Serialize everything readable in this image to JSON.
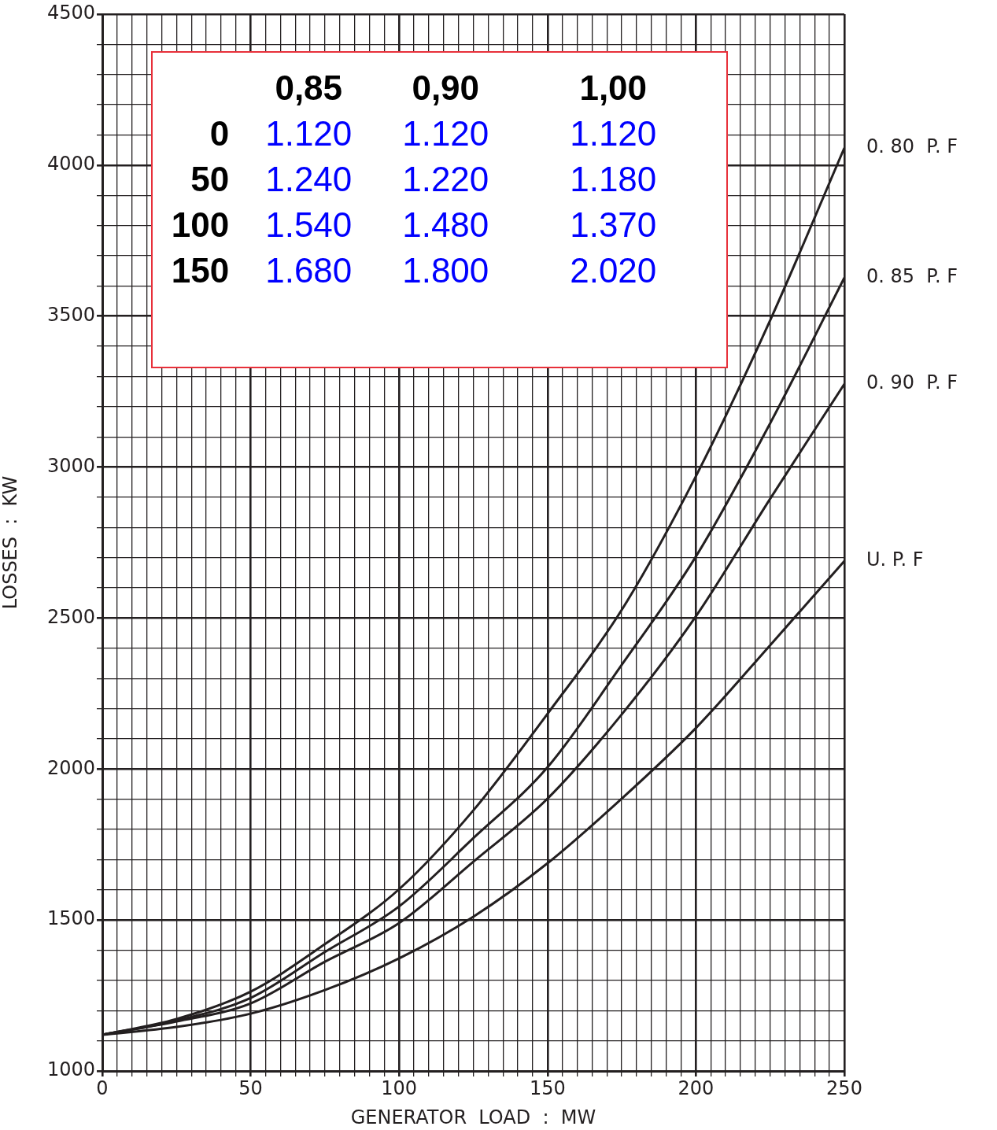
{
  "chart_data": {
    "type": "line",
    "xlabel": "GENERATOR  LOAD  :  MW",
    "ylabel": "LOSSES  :  KW",
    "x": [
      0,
      25,
      50,
      75,
      100,
      125,
      150,
      175,
      200,
      225,
      250
    ],
    "series": [
      {
        "name": "0. 80  P. F",
        "color": "#231f20",
        "values": [
          1120,
          1172,
          1263,
          1420,
          1602,
          1863,
          2183,
          2527,
          2970,
          3486,
          4057
        ]
      },
      {
        "name": "0. 85  P. F",
        "color": "#231f20",
        "values": [
          1120,
          1167,
          1242,
          1394,
          1545,
          1771,
          2006,
          2345,
          2704,
          3145,
          3627
        ]
      },
      {
        "name": "0. 90  P. F",
        "color": "#231f20",
        "values": [
          1120,
          1164,
          1224,
          1362,
          1490,
          1693,
          1902,
          2181,
          2506,
          2895,
          3275
        ]
      },
      {
        "name": "U. P. F",
        "color": "#231f20",
        "values": [
          1120,
          1146,
          1190,
          1268,
          1373,
          1511,
          1688,
          1902,
          2136,
          2410,
          2689
        ]
      }
    ],
    "xlim": [
      0,
      250
    ],
    "xticks": [
      0,
      {
        "value": 5,
        "label": null
      },
      {
        "value": 10,
        "label": null
      },
      {
        "value": 15,
        "label": null
      },
      {
        "value": 20,
        "label": null
      },
      {
        "value": 25,
        "label": null
      },
      {
        "value": 30,
        "label": null
      },
      {
        "value": 35,
        "label": null
      },
      {
        "value": 40,
        "label": null
      },
      {
        "value": 45,
        "label": null
      },
      50,
      {
        "value": 55,
        "label": null
      },
      {
        "value": 60,
        "label": null
      },
      {
        "value": 65,
        "label": null
      },
      {
        "value": 70,
        "label": null
      },
      {
        "value": 75,
        "label": null
      },
      {
        "value": 80,
        "label": null
      },
      {
        "value": 85,
        "label": null
      },
      {
        "value": 90,
        "label": null
      },
      {
        "value": 95,
        "label": null
      },
      100,
      {
        "value": 105,
        "label": null
      },
      {
        "value": 110,
        "label": null
      },
      {
        "value": 115,
        "label": null
      },
      {
        "value": 120,
        "label": null
      },
      {
        "value": 125,
        "label": null
      },
      {
        "value": 130,
        "label": null
      },
      {
        "value": 135,
        "label": null
      },
      {
        "value": 140,
        "label": null
      },
      {
        "value": 145,
        "label": null
      },
      150,
      {
        "value": 155,
        "label": null
      },
      {
        "value": 160,
        "label": null
      },
      {
        "value": 165,
        "label": null
      },
      {
        "value": 170,
        "label": null
      },
      {
        "value": 175,
        "label": null
      },
      {
        "value": 180,
        "label": null
      },
      {
        "value": 185,
        "label": null
      },
      {
        "value": 190,
        "label": null
      },
      {
        "value": 195,
        "label": null
      },
      200,
      {
        "value": 205,
        "label": null
      },
      {
        "value": 210,
        "label": null
      },
      {
        "value": 215,
        "label": null
      },
      {
        "value": 220,
        "label": null
      },
      {
        "value": 225,
        "label": null
      },
      {
        "value": 230,
        "label": null
      },
      {
        "value": 235,
        "label": null
      },
      {
        "value": 240,
        "label": null
      },
      {
        "value": 245,
        "label": null
      },
      250
    ],
    "ylim": [
      1000,
      4500
    ],
    "yticks": [
      1000,
      {
        "value": 1100,
        "label": null
      },
      {
        "value": 1200,
        "label": null
      },
      {
        "value": 1300,
        "label": null
      },
      {
        "value": 1400,
        "label": null
      },
      1500,
      {
        "value": 1600,
        "label": null
      },
      {
        "value": 1700,
        "label": null
      },
      {
        "value": 1800,
        "label": null
      },
      {
        "value": 1900,
        "label": null
      },
      2000,
      {
        "value": 2100,
        "label": null
      },
      {
        "value": 2200,
        "label": null
      },
      {
        "value": 2300,
        "label": null
      },
      {
        "value": 2400,
        "label": null
      },
      2500,
      {
        "value": 2600,
        "label": null
      },
      {
        "value": 2700,
        "label": null
      },
      {
        "value": 2800,
        "label": null
      },
      {
        "value": 2900,
        "label": null
      },
      3000,
      {
        "value": 3100,
        "label": null
      },
      {
        "value": 3200,
        "label": null
      },
      {
        "value": 3300,
        "label": null
      },
      {
        "value": 3400,
        "label": null
      },
      3500,
      {
        "value": 3600,
        "label": null
      },
      {
        "value": 3700,
        "label": null
      },
      {
        "value": 3800,
        "label": null
      },
      {
        "value": 3900,
        "label": null
      },
      4000,
      {
        "value": 4100,
        "label": null
      },
      {
        "value": 4200,
        "label": null
      },
      {
        "value": 4300,
        "label": null
      },
      {
        "value": 4400,
        "label": null
      },
      4500
    ],
    "annotations": [
      "0,85",
      "0,90",
      "1,00",
      "0",
      "1.120",
      "1.120",
      "1.120",
      "50",
      "1.240",
      "1.220",
      "1.180",
      "100",
      "1.540",
      "1.480",
      "1.370",
      "150",
      "1.680",
      "1.800",
      "2.020"
    ],
    "grid": true,
    "legend": false,
    "marker": "none",
    "line_style": "solid"
  }
}
